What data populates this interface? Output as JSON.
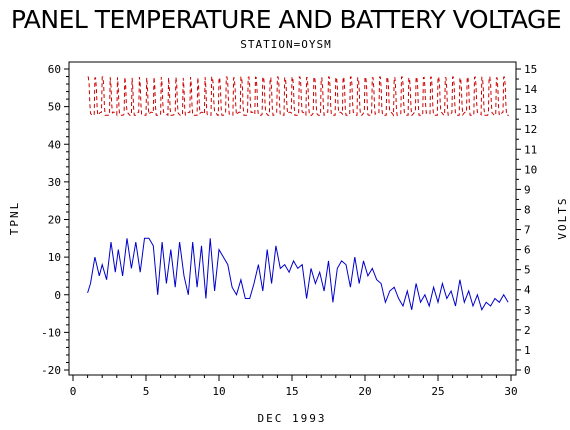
{
  "chart_data": {
    "type": "line",
    "title": "PANEL TEMPERATURE AND BATTERY VOLTAGE",
    "subtitle": "STATION=OYSM",
    "xlabel": "DEC 1993",
    "ylabel_left": "TPNL",
    "ylabel_right": "VOLTS",
    "xlim": [
      0,
      30
    ],
    "ylim_left": [
      -20,
      60
    ],
    "ylim_right": [
      0,
      15
    ],
    "x_ticks": [
      0,
      5,
      10,
      15,
      20,
      25,
      30
    ],
    "y_ticks_left": [
      -20,
      -10,
      0,
      10,
      20,
      30,
      40,
      50,
      60
    ],
    "y_ticks_right": [
      0,
      1,
      2,
      3,
      4,
      5,
      6,
      7,
      8,
      9,
      10,
      11,
      12,
      13,
      14,
      15
    ],
    "grid": false,
    "series": [
      {
        "axis": "left",
        "color": "#0000cc",
        "style": "solid",
        "x": [
          1.0,
          1.2,
          1.5,
          1.8,
          2.0,
          2.3,
          2.6,
          2.9,
          3.1,
          3.4,
          3.7,
          4.0,
          4.3,
          4.6,
          4.9,
          5.2,
          5.5,
          5.8,
          6.1,
          6.4,
          6.7,
          7.0,
          7.3,
          7.6,
          7.9,
          8.2,
          8.5,
          8.8,
          9.1,
          9.4,
          9.7,
          10.0,
          10.3,
          10.6,
          10.9,
          11.2,
          11.5,
          11.8,
          12.1,
          12.4,
          12.7,
          13.0,
          13.3,
          13.6,
          13.9,
          14.2,
          14.5,
          14.8,
          15.1,
          15.4,
          15.7,
          16.0,
          16.3,
          16.6,
          16.9,
          17.2,
          17.5,
          17.8,
          18.1,
          18.4,
          18.7,
          19.0,
          19.3,
          19.6,
          19.9,
          20.2,
          20.5,
          20.8,
          21.1,
          21.4,
          21.7,
          22.0,
          22.3,
          22.6,
          22.9,
          23.2,
          23.5,
          23.8,
          24.1,
          24.4,
          24.7,
          25.0,
          25.3,
          25.6,
          25.9,
          26.2,
          26.5,
          26.8,
          27.1,
          27.4,
          27.7,
          28.0,
          28.3,
          28.6,
          28.9,
          29.2,
          29.5,
          29.8
        ],
        "values": [
          0.5,
          3,
          10,
          5,
          8,
          4,
          14,
          6,
          12,
          5,
          15,
          7,
          14,
          6,
          15,
          15,
          13,
          0,
          14,
          3,
          12,
          2,
          14,
          5,
          0,
          14,
          2,
          13,
          -1,
          15,
          1,
          12,
          10,
          8,
          2,
          0,
          4,
          -1,
          -1,
          3,
          8,
          1,
          12,
          3,
          13,
          7,
          8,
          6,
          9,
          7,
          8,
          -1,
          7,
          3,
          6,
          1,
          9,
          -2,
          7,
          9,
          8,
          2,
          10,
          3,
          9,
          5,
          7,
          4,
          3,
          -2,
          1,
          2,
          -1,
          -3,
          1,
          -4,
          3,
          -2,
          0,
          -3,
          2,
          -2,
          3,
          -1,
          1,
          -3,
          4,
          -2,
          1,
          -3,
          0,
          -4,
          -2,
          -3,
          -1,
          -2,
          0,
          -2
        ]
      },
      {
        "axis": "right",
        "color": "#cc0000",
        "style": "dashed",
        "x_start": 1.0,
        "x_end": 29.9,
        "period_days": 0.5,
        "min_volts": 12.7,
        "max_volts": 14.6
      }
    ]
  }
}
